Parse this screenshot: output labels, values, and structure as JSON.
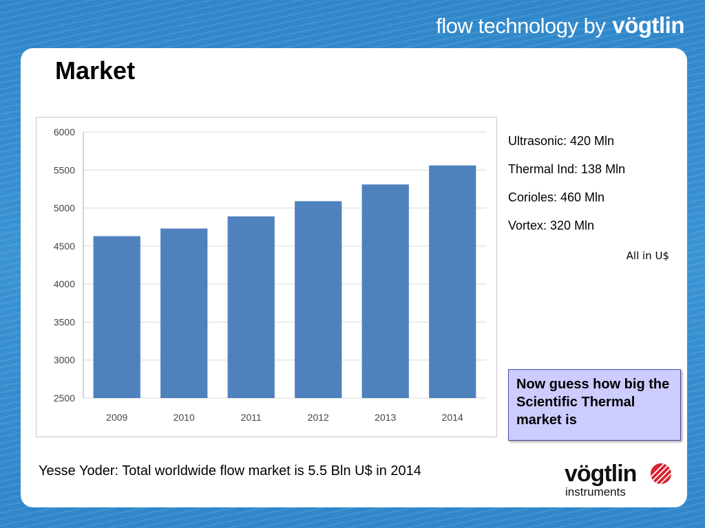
{
  "header": {
    "tagline": "flow technology by",
    "brand": "vögtlin"
  },
  "slide": {
    "title": "Market"
  },
  "market_breakdown": [
    {
      "label": "Ultrasonic: 420 Mln"
    },
    {
      "label": "Thermal Ind: 138 Mln"
    },
    {
      "label": "Corioles: 460 Mln"
    },
    {
      "label": "Vortex: 320 Mln"
    }
  ],
  "currency_note": "All in U$",
  "callout": "Now guess how big the Scientific Thermal market is",
  "footnote": "Yesse Yoder: Total worldwide flow market is 5.5 Bln U$ in 2014",
  "footer_logo": {
    "name": "vögtlin",
    "subtitle": "instruments",
    "icon": "red-striped-disc-icon"
  },
  "chart_data": {
    "type": "bar",
    "categories": [
      "2009",
      "2010",
      "2011",
      "2012",
      "2013",
      "2014"
    ],
    "values": [
      4630,
      4730,
      4890,
      5090,
      5310,
      5560
    ],
    "ylim": [
      2500,
      6000
    ],
    "yticks": [
      2500,
      3000,
      3500,
      4000,
      4500,
      5000,
      5500,
      6000
    ],
    "grid": true,
    "bar_color": "#4f81bd",
    "grid_color": "#d9d9d9"
  }
}
